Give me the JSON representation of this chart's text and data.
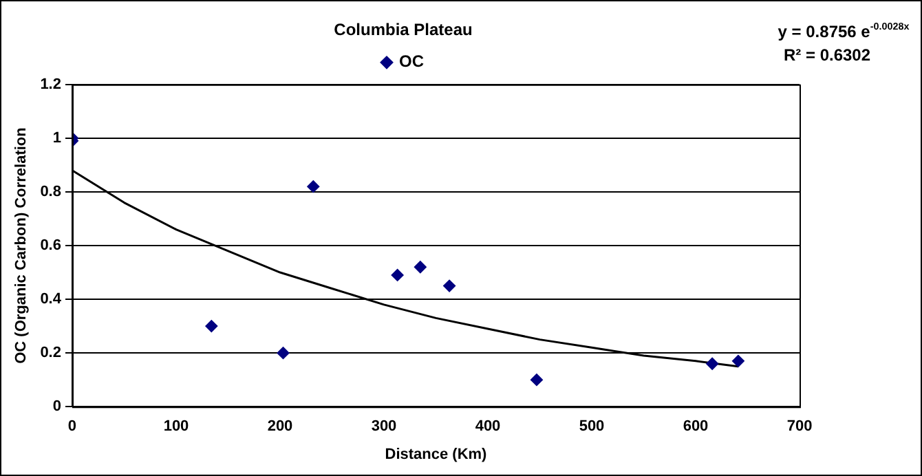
{
  "chart_data": {
    "type": "scatter",
    "title": "Columbia Plateau",
    "xlabel": "Distance (Km)",
    "ylabel": "OC (Organic Carbon) Correlation",
    "annotations": [
      "y = 0.8756 e$^{-0.0028x}$",
      "R² = 0.6302"
    ],
    "series": [
      {
        "name": "OC",
        "color": "#000080",
        "marker": "diamond",
        "x": [
          0,
          0,
          134,
          203,
          232,
          313,
          335,
          363,
          447,
          616,
          641
        ],
        "values": [
          0.99,
          1.0,
          0.3,
          0.2,
          0.82,
          0.49,
          0.52,
          0.45,
          0.1,
          0.16,
          0.17
        ]
      },
      {
        "type": "line",
        "color": "#000000",
        "marker": "none",
        "line_style": "solid",
        "x": [
          0,
          50,
          100,
          150,
          200,
          250,
          300,
          350,
          400,
          450,
          500,
          550,
          600,
          641
        ],
        "values": [
          0.88,
          0.76,
          0.66,
          0.58,
          0.5,
          0.44,
          0.38,
          0.33,
          0.29,
          0.25,
          0.22,
          0.19,
          0.17,
          0.15
        ]
      }
    ],
    "xlim": [
      0,
      700
    ],
    "xticks": [
      0,
      100,
      200,
      300,
      400,
      500,
      600,
      700
    ],
    "ylim": [
      0,
      1.2
    ],
    "yticks": [
      0,
      0.2,
      0.4,
      0.6,
      0.8,
      1,
      1.2
    ],
    "grid": "y",
    "legend": "top"
  }
}
